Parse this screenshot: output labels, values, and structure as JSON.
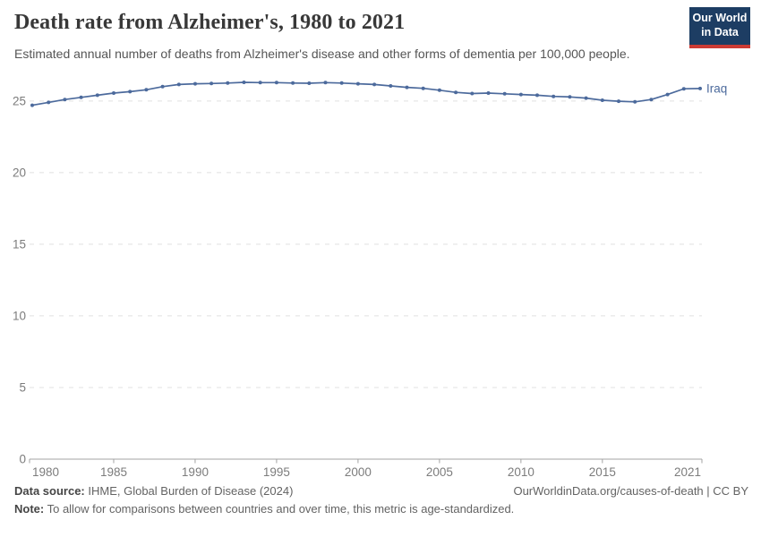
{
  "header": {
    "logo": {
      "line1": "Our World",
      "line2": "in Data",
      "bg": "#1d3d63",
      "accent": "#cc3b34"
    }
  },
  "chart_data": {
    "type": "line",
    "title": "Death rate from Alzheimer's, 1980 to 2021",
    "subtitle": "Estimated annual number of deaths from Alzheimer's disease and other forms of dementia per 100,000 people.",
    "xlabel": "",
    "ylabel": "",
    "xlim": [
      1980,
      2021
    ],
    "ylim": [
      0,
      27.3
    ],
    "xticks": [
      1980,
      1985,
      1990,
      1995,
      2000,
      2005,
      2010,
      2015,
      2021
    ],
    "yticks": [
      0,
      5,
      10,
      15,
      20,
      25
    ],
    "grid": "horizontal-dashed",
    "legend": "label-at-line-end",
    "colors": {
      "line": "#4C6A9C",
      "grid": "#e0e0e0",
      "axis": "#a3a3a3",
      "tick_text": "#7c7c7c"
    },
    "series": [
      {
        "name": "Iraq",
        "color": "#4C6A9C",
        "x": [
          1980,
          1981,
          1982,
          1983,
          1984,
          1985,
          1986,
          1987,
          1988,
          1989,
          1990,
          1991,
          1992,
          1993,
          1994,
          1995,
          1996,
          1997,
          1998,
          1999,
          2000,
          2001,
          2002,
          2003,
          2004,
          2005,
          2006,
          2007,
          2008,
          2009,
          2010,
          2011,
          2012,
          2013,
          2014,
          2015,
          2016,
          2017,
          2018,
          2019,
          2020,
          2021
        ],
        "values": [
          24.7,
          24.9,
          25.1,
          25.25,
          25.4,
          25.55,
          25.65,
          25.78,
          26.0,
          26.15,
          26.2,
          26.22,
          26.25,
          26.3,
          26.28,
          26.28,
          26.25,
          26.24,
          26.28,
          26.25,
          26.2,
          26.15,
          26.05,
          25.95,
          25.88,
          25.75,
          25.6,
          25.52,
          25.55,
          25.5,
          25.45,
          25.4,
          25.32,
          25.28,
          25.2,
          25.05,
          24.98,
          24.94,
          25.1,
          25.45,
          25.85,
          25.87
        ]
      }
    ]
  },
  "footer": {
    "source_label": "Data source:",
    "source_value": " IHME, Global Burden of Disease (2024)",
    "link": "OurWorldinData.org/causes-of-death | CC BY",
    "note_label": "Note:",
    "note_value": " To allow for comparisons between countries and over time, this metric is age-standardized."
  }
}
